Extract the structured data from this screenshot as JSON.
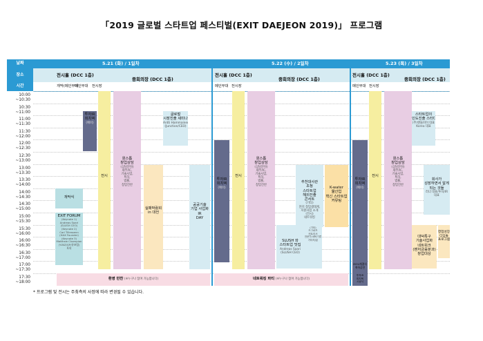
{
  "title": "「2019 글로벌 스타트업 페스티벌(EXIT DAEJEON 2019)」 프로그램",
  "row_labels": {
    "date": "날짜",
    "venue": "장소",
    "time": "시간"
  },
  "days": [
    {
      "date": "5.21 (화) / 1일차",
      "venue_main": "전시홀 (DCC 1층)",
      "venue_second": "중회의장 (DCC 1층)",
      "sub": [
        "개막(메인무대",
        "메인무대",
        "전시장"
      ]
    },
    {
      "date": "5.22 (수) / 2일차",
      "venue_main": "전시홀 (DCC 1층)",
      "venue_second": "중회의장 (DCC 1층)",
      "sub": [
        "메인무대",
        "전시장"
      ]
    },
    {
      "date": "5.23 (목) / 3일차",
      "venue_main": "전시홀 (DCC 1층)",
      "venue_second": "중회의장 (DCC 1층)",
      "sub": [
        "메인무대",
        "전시장"
      ]
    }
  ],
  "times": [
    "10:00\n~10:30",
    "10:30\n~11:00",
    "11:00\n~11:30",
    "11:30\n~12:00",
    "12:00\n~12:30",
    "12:30\n~13:00",
    "13:00\n~13:30",
    "13:30\n~14:00",
    "14:00\n~14:30",
    "14:30\n~15:00",
    "15:00\n~15:30",
    "15:30\n~16:00",
    "16:00\n~16:30",
    "16:30\n~17:00",
    "17:00\n~17:30",
    "17:30\n~18:00"
  ],
  "blocks": {
    "d1_opening": "개막식",
    "d1_exit_forum": "EXIT FORUM",
    "d1_exit_forum_detail": "(Keynote 1)\nAndreas Saari\n(SLUSH CEO)\n(Keynote 2)\nCarl Tillessenn\n(HAX Founder)\n(Keynote 3)\nMatthew Champion\n(Y-BIZ/GP/유포럼)\n토의",
    "d1_investor": "투자IR\n피치덱",
    "d1_investor_detail": "(예비)",
    "d1_exhibit": "전시",
    "d1_onestop": "원스톱\n창업상담",
    "d1_onestop_detail": "(상담분야)\n세무/IC,\n기술사업,\n특허,\n법률,\n창업전반",
    "d1_seminar": "글로벌\n시장진출 세미나",
    "d1_seminar_detail": "Antti Hammainen\n(Junction/CEO)",
    "d1_briefing": "실패박람회\nin 대전",
    "d1_public_tech": "공공기술\n기업 사업화\nIR\nDAY",
    "d1_welcome": "환영 만찬",
    "d1_welcome_note": "(※누구나 참여 가능합니다)",
    "d2_investor": "투자IR\n피치덱",
    "d2_investor_detail": "(예비)",
    "d2_exhibit": "전시",
    "d2_onestop": "원스톱\n창업상담",
    "d2_onestop_detail": "(상담분야)\n세무/IC,\n기술사업,\n특허,\n법률,\n창업전반",
    "d2_recommend": "추천대사관\n초청\n스타트업\n해외진출\n콘서트",
    "d2_recommend_detail": "(기타)\n현지 창업생태계,\n지원사업 소개\n(전시)\n네트워킹",
    "d2_kwater": "K-water\n물산업\n혁신 스타트업\n커뮤팅",
    "d2_slush": "SLUSH 와\n스타트업 맛집",
    "d2_slush_detail": "Andreas Saari\n(SLUSH CEO)",
    "d2_slush_right": "(기타)\n드그로츠\n컨트리서\n전문가/세탁기류\n기타처/분",
    "d2_network": "네트워킹 파티",
    "d2_network_note": "(※누구나 참여 가능합니다)",
    "d3_investor": "투자IR\n피치덱",
    "d3_investor_detail": "(예비)",
    "d3_mou": "MOU체결식\n축하공연",
    "d3_closing": "투자IR\n피치덱\n시상식",
    "d3_exhibit": "전시",
    "d3_onestop": "원스톱\n창업상담",
    "d3_onestop_detail": "(상담분야)\n세무/IC,\n기술사업,\n특허,\n법률,\n창업전반",
    "d3_expand": "스타트업의\n인도진출 스터디",
    "d3_expand_detail": "(주)앤들비이 대표\nKorea 대표",
    "d3_invest_study": "회사가\n성장하면서 알게\n되는 것들",
    "d3_invest_study_detail": "러너 대표/투자/IR\n대표",
    "d3_university": "대덕특구\n기술사업화\n네트워크\n(벤처금융분과)\n창업대상",
    "d3_growth": "창업성장\n디딤돌\n프로그램"
  },
  "footnote": "* 프로그램 및 전시는 주최측의 사정에 따라 변경될 수 있습니다.",
  "colors": {
    "header": "#2b9ad3",
    "exhibit": "#f6eea0",
    "onestop": "#e8cde3",
    "forum": "#b9dfe3",
    "investor": "#646b8c",
    "cream": "#fbe7bf",
    "pink": "#f8dce4",
    "lightblue": "#d6ebf2",
    "orange": "#fbe0a6"
  }
}
